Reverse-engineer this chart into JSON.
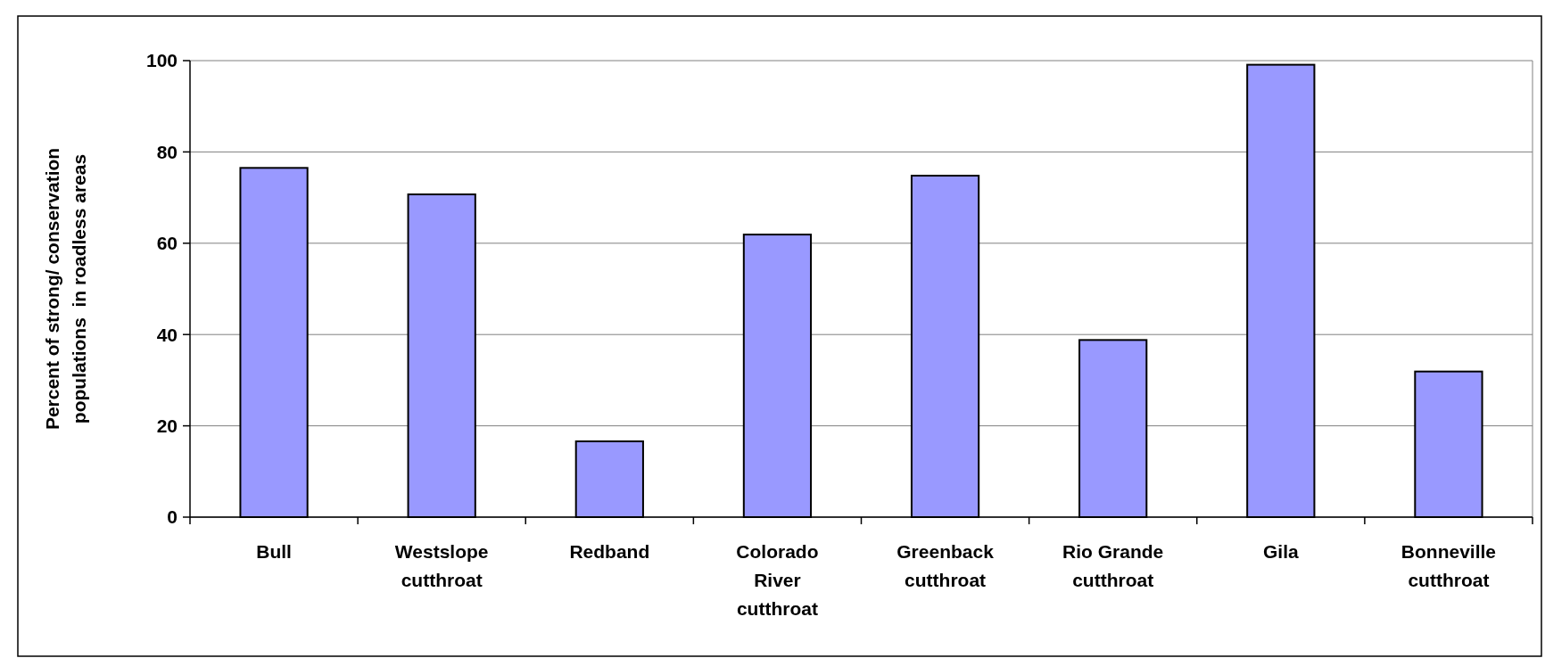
{
  "chart_data": {
    "type": "bar",
    "ylabel": "Percent of strong/ conservation populations  in roadless areas",
    "categories": [
      "Bull",
      "Westslope cutthroat",
      "Redband",
      "Colorado River cutthroat",
      "Greenback cutthroat",
      "Rio Grande cutthroat",
      "Gila",
      "Bonneville cutthroat"
    ],
    "values": [
      76.5,
      70.7,
      16.6,
      61.9,
      74.8,
      38.8,
      99.1,
      31.9
    ],
    "color": "#9999ff",
    "ylim": [
      0,
      100
    ],
    "yticks": [
      0,
      20,
      40,
      60,
      80,
      100
    ],
    "grid": "y"
  }
}
